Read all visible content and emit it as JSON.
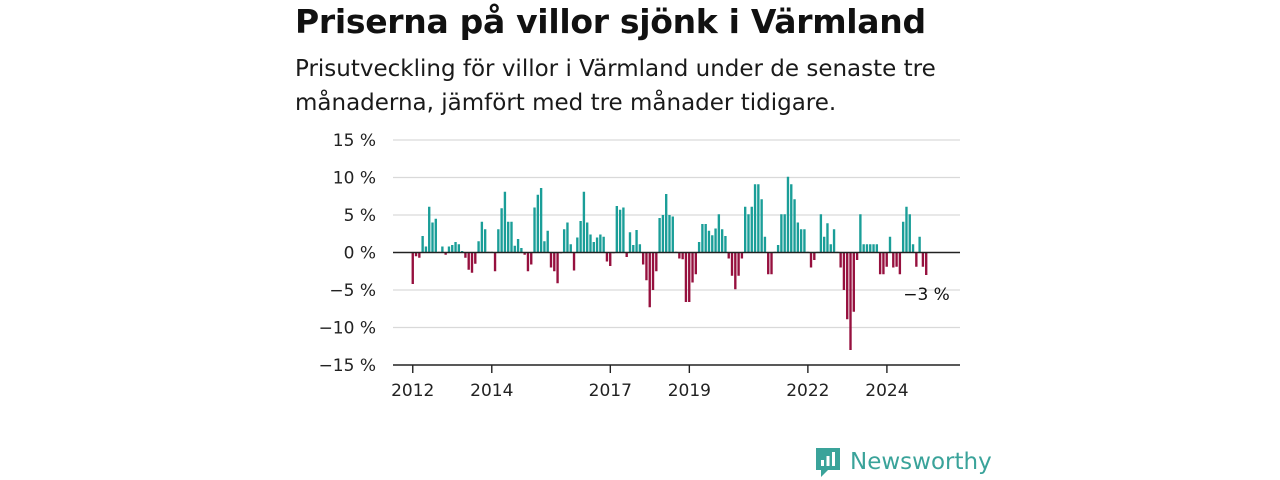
{
  "chart_data": {
    "type": "bar",
    "title": "Priserna på villor sjönk i Värmland",
    "subtitle": "Prisutveckling för villor i Värmland under de senaste tre månaderna, jämfört med tre månader tidigare.",
    "ylim": [
      -15,
      15
    ],
    "yticks": [
      15,
      10,
      5,
      0,
      -5,
      -10,
      -15
    ],
    "ytick_labels": [
      "15 %",
      "10 %",
      "5 %",
      "0 %",
      "−5 %",
      "−10 %",
      "−15 %"
    ],
    "xlim": [
      2011.5,
      2025.85
    ],
    "xticks": [
      2012,
      2014,
      2017,
      2019,
      2022,
      2024
    ],
    "xtick_labels": [
      "2012",
      "2014",
      "2017",
      "2019",
      "2022",
      "2024"
    ],
    "grid": true,
    "x_start": 2012,
    "step": 0.0833,
    "values": [
      -4.2,
      -0.5,
      -0.7,
      2.2,
      0.8,
      6.1,
      4.0,
      4.5,
      0.1,
      0.8,
      -0.3,
      0.8,
      1.0,
      1.4,
      1.1,
      0.2,
      -0.7,
      -2.3,
      -2.7,
      -1.5,
      1.5,
      4.1,
      3.1,
      0.1,
      0.1,
      -2.5,
      3.1,
      5.9,
      8.1,
      4.1,
      4.1,
      0.9,
      1.8,
      0.6,
      -0.3,
      -2.5,
      -1.6,
      6.0,
      7.7,
      8.6,
      1.5,
      2.9,
      -2.0,
      -2.5,
      -4.1,
      -0.1,
      3.1,
      4.0,
      1.1,
      -2.4,
      2.0,
      4.2,
      8.1,
      4.0,
      2.4,
      1.4,
      2.0,
      2.4,
      2.1,
      -1.2,
      -1.8,
      -0.1,
      6.2,
      5.7,
      6.0,
      -0.6,
      2.7,
      1.0,
      3.0,
      1.1,
      -1.6,
      -3.7,
      -7.3,
      -5.0,
      -2.5,
      4.6,
      5.0,
      7.8,
      5.0,
      4.8,
      0.1,
      -0.8,
      -0.9,
      -6.6,
      -6.6,
      -4.0,
      -2.9,
      1.4,
      3.8,
      3.8,
      2.9,
      2.3,
      3.2,
      5.1,
      3.1,
      2.2,
      -0.8,
      -3.1,
      -4.9,
      -3.1,
      -0.8,
      6.1,
      5.1,
      6.1,
      9.1,
      9.1,
      7.1,
      2.1,
      -2.9,
      -2.9,
      0.1,
      1.0,
      5.1,
      5.1,
      10.1,
      9.1,
      7.1,
      4.0,
      3.1,
      3.1,
      0.1,
      -2.0,
      -1.0,
      0.1,
      5.1,
      2.1,
      3.9,
      1.1,
      3.1,
      0.1,
      -2.0,
      -5.0,
      -8.9,
      -13.0,
      -7.9,
      -1.0,
      5.1,
      1.1,
      1.1,
      1.1,
      1.1,
      1.1,
      -2.9,
      -2.9,
      -1.9,
      2.1,
      -2.0,
      -1.9,
      -2.9,
      4.1,
      6.1,
      5.1,
      1.1,
      -1.9,
      2.1,
      -1.9,
      -3.0
    ],
    "positive_color": "#1a9e98",
    "negative_color": "#96103e",
    "annotation": {
      "text": "−3 %",
      "value": -3.0
    }
  },
  "brand": {
    "name": "Newsworthy",
    "icon": "newsworthy-logo-icon",
    "color": "#3aa39a"
  }
}
